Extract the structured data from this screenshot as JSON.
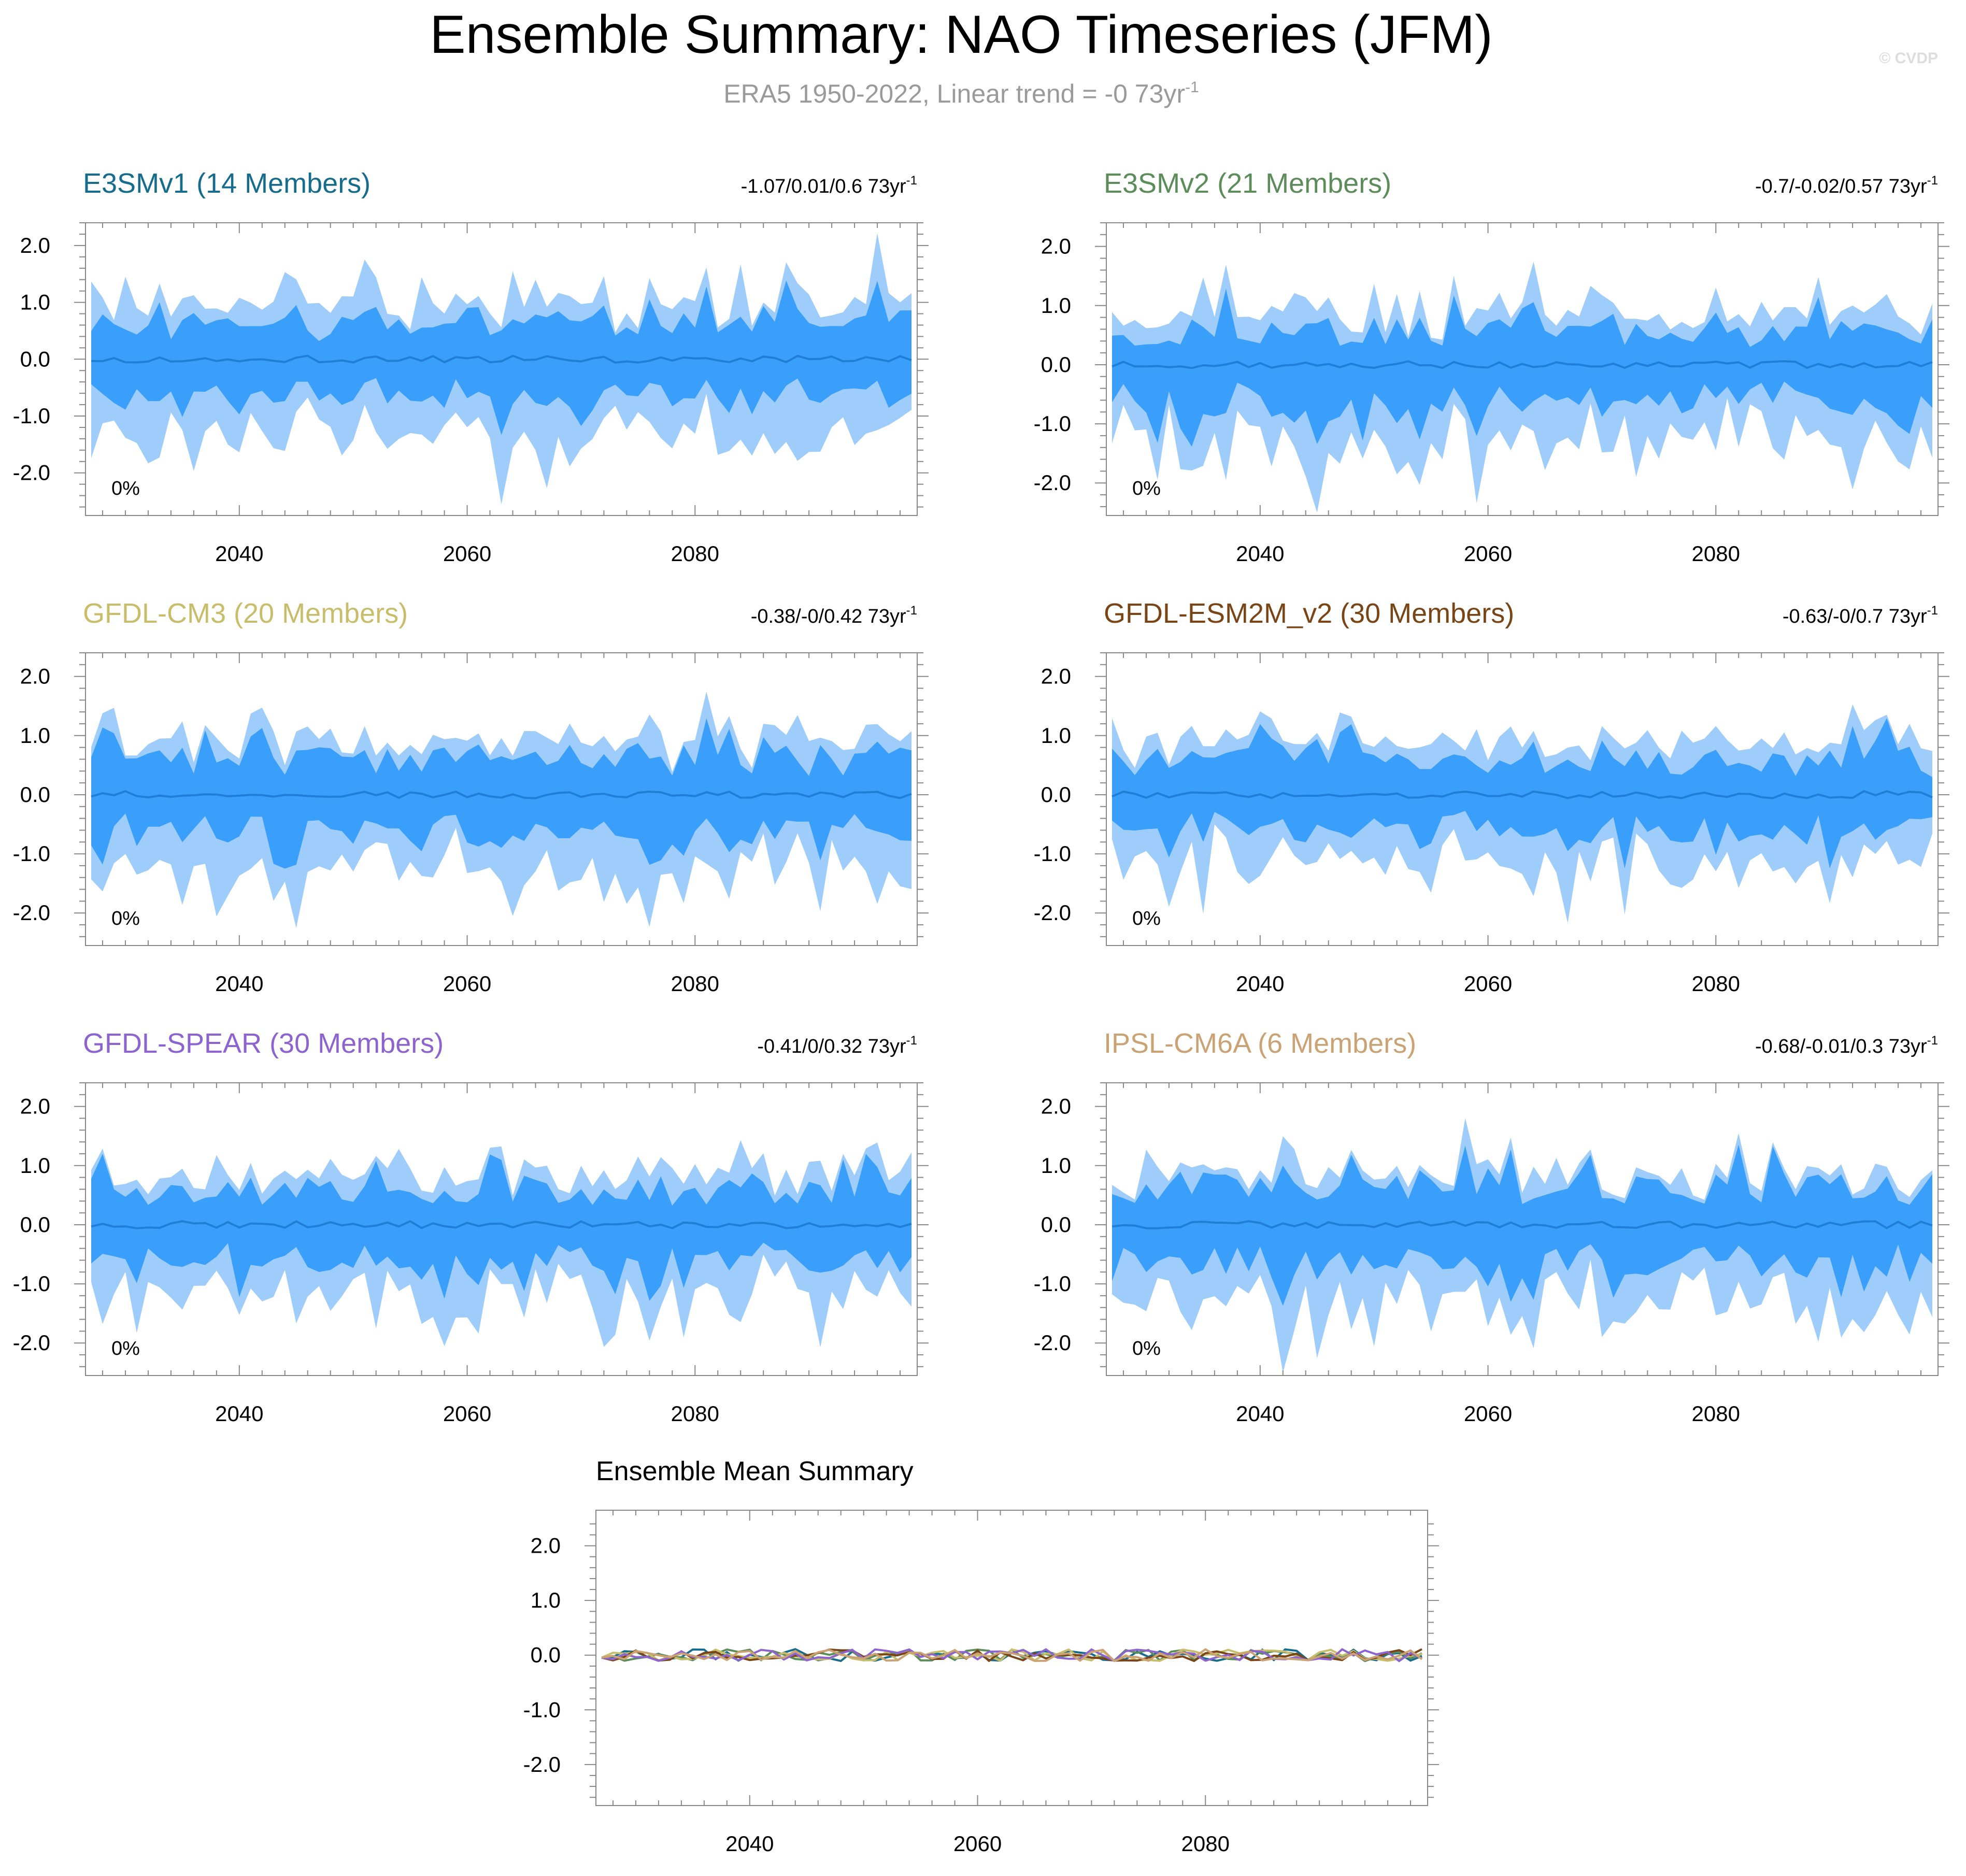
{
  "figure": {
    "title": "Ensemble Summary: NAO Timeseries (JFM)",
    "subtitle_main": "ERA5 1950-2022, Linear trend = -0 73yr",
    "subtitle_sup": "-1",
    "watermark": "© CVDP"
  },
  "colors": {
    "outer_band": "#9ecdfb",
    "inner_band": "#399ffb",
    "mean_line": "#1f7fd8",
    "axis": "#888888",
    "text": "#000000",
    "subtitle": "#9a9a9a",
    "watermark": "#dddddd"
  },
  "chart_data": [
    {
      "type": "area",
      "id": "e3smv1",
      "title": "E3SMv1 (14 Members)",
      "title_color": "#156c8c",
      "trend_text": "-1.07/0.01/0.6 73yr",
      "trend_sup": "-1",
      "pct_label": "0%",
      "x_start": 2027,
      "x_end": 2099,
      "xlim": [
        2026.5,
        2099.5
      ],
      "ylim": [
        -2.75,
        2.4
      ],
      "xticks": [
        2040,
        2060,
        2080
      ],
      "yticks": [
        2.0,
        1.0,
        0.0,
        -1.0,
        -2.0
      ],
      "ytick_labels": [
        "2.0",
        "1.0",
        "0.0",
        "-1.0",
        "-2.0"
      ],
      "amp": 1.05,
      "seed": 11
    },
    {
      "type": "area",
      "id": "e3smv2",
      "title": "E3SMv2 (21 Members)",
      "title_color": "#5b8c5a",
      "trend_text": "-0.7/-0.02/0.57 73yr",
      "trend_sup": "-1",
      "pct_label": "0%",
      "x_start": 2027,
      "x_end": 2099,
      "xlim": [
        2026.5,
        2099.5
      ],
      "ylim": [
        -2.55,
        2.4
      ],
      "xticks": [
        2040,
        2060,
        2080
      ],
      "yticks": [
        2.0,
        1.0,
        0.0,
        -1.0,
        -2.0
      ],
      "ytick_labels": [
        "2.0",
        "1.0",
        "0.0",
        "-1.0",
        "-2.0"
      ],
      "amp": 0.95,
      "seed": 23
    },
    {
      "type": "area",
      "id": "gfdl-cm3",
      "title": "GFDL-CM3 (20 Members)",
      "title_color": "#c8bd6a",
      "trend_text": "-0.38/-0/0.42 73yr",
      "trend_sup": "-1",
      "pct_label": "0%",
      "x_start": 2027,
      "x_end": 2099,
      "xlim": [
        2026.5,
        2099.5
      ],
      "ylim": [
        -2.55,
        2.4
      ],
      "xticks": [
        2040,
        2060,
        2080
      ],
      "yticks": [
        2.0,
        1.0,
        0.0,
        -1.0,
        -2.0
      ],
      "ytick_labels": [
        "2.0",
        "1.0",
        "0.0",
        "-1.0",
        "-2.0"
      ],
      "amp": 0.95,
      "seed": 37
    },
    {
      "type": "area",
      "id": "gfdl-esm2m",
      "title": "GFDL-ESM2M_v2 (30 Members)",
      "title_color": "#7a4516",
      "trend_text": "-0.63/-0/0.7 73yr",
      "trend_sup": "-1",
      "pct_label": "0%",
      "x_start": 2027,
      "x_end": 2099,
      "xlim": [
        2026.5,
        2099.5
      ],
      "ylim": [
        -2.55,
        2.4
      ],
      "xticks": [
        2040,
        2060,
        2080
      ],
      "yticks": [
        2.0,
        1.0,
        0.0,
        -1.0,
        -2.0
      ],
      "ytick_labels": [
        "2.0",
        "1.0",
        "0.0",
        "-1.0",
        "-2.0"
      ],
      "amp": 0.9,
      "seed": 41
    },
    {
      "type": "area",
      "id": "gfdl-spear",
      "title": "GFDL-SPEAR (30 Members)",
      "title_color": "#8c63cf",
      "trend_text": "-0.41/0/0.32 73yr",
      "trend_sup": "-1",
      "pct_label": "0%",
      "x_start": 2027,
      "x_end": 2099,
      "xlim": [
        2026.5,
        2099.5
      ],
      "ylim": [
        -2.55,
        2.4
      ],
      "xticks": [
        2040,
        2060,
        2080
      ],
      "yticks": [
        2.0,
        1.0,
        0.0,
        -1.0,
        -2.0
      ],
      "ytick_labels": [
        "2.0",
        "1.0",
        "0.0",
        "-1.0",
        "-2.0"
      ],
      "amp": 0.9,
      "seed": 53
    },
    {
      "type": "area",
      "id": "ipsl-cm6a",
      "title": "IPSL-CM6A (6 Members)",
      "title_color": "#cba273",
      "trend_text": "-0.68/-0.01/0.3 73yr",
      "trend_sup": "-1",
      "pct_label": "0%",
      "x_start": 2027,
      "x_end": 2099,
      "xlim": [
        2026.5,
        2099.5
      ],
      "ylim": [
        -2.55,
        2.4
      ],
      "xticks": [
        2040,
        2060,
        2080
      ],
      "yticks": [
        2.0,
        1.0,
        0.0,
        -1.0,
        -2.0
      ],
      "ytick_labels": [
        "2.0",
        "1.0",
        "0.0",
        "-1.0",
        "-2.0"
      ],
      "amp": 1.0,
      "seed": 67,
      "narrow_outer": true
    },
    {
      "type": "line",
      "id": "ensemble-mean",
      "title": "Ensemble Mean Summary",
      "title_color": "#000000",
      "x_start": 2027,
      "x_end": 2099,
      "xlim": [
        2026.5,
        2099.5
      ],
      "ylim": [
        -2.75,
        2.65
      ],
      "xticks": [
        2040,
        2060,
        2080
      ],
      "yticks": [
        2.0,
        1.0,
        0.0,
        -1.0,
        -2.0
      ],
      "ytick_labels": [
        "2.0",
        "1.0",
        "0.0",
        "-1.0",
        "-2.0"
      ],
      "series": [
        {
          "name": "E3SMv1",
          "color": "#156c8c",
          "seed": 11
        },
        {
          "name": "E3SMv2",
          "color": "#5b8c5a",
          "seed": 23
        },
        {
          "name": "GFDL-CM3",
          "color": "#c8bd6a",
          "seed": 37
        },
        {
          "name": "GFDL-ESM2M_v2",
          "color": "#7a4516",
          "seed": 41
        },
        {
          "name": "GFDL-SPEAR",
          "color": "#8c63cf",
          "seed": 53
        },
        {
          "name": "IPSL-CM6A",
          "color": "#cba273",
          "seed": 67
        }
      ]
    }
  ]
}
